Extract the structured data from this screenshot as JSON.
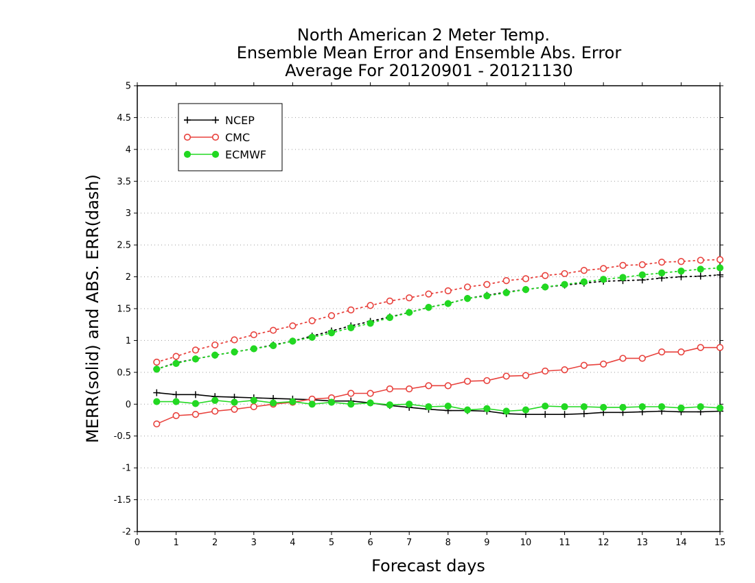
{
  "chart_data": {
    "type": "line",
    "title_lines": [
      "North American 2 Meter Temp.",
      "Ensemble Mean Error and Ensemble Abs. Error",
      "Average For 20120901 - 20121130"
    ],
    "xlabel": "Forecast days",
    "ylabel": "MERR(solid) and ABS. ERR(dash)",
    "xlim": [
      0,
      15
    ],
    "ylim": [
      -2,
      5
    ],
    "x_ticks": [
      0,
      1,
      2,
      3,
      4,
      5,
      6,
      7,
      8,
      9,
      10,
      11,
      12,
      13,
      14,
      15
    ],
    "y_ticks": [
      -2,
      -1.5,
      -1,
      -0.5,
      0,
      0.5,
      1,
      1.5,
      2,
      2.5,
      3,
      3.5,
      4,
      4.5,
      5
    ],
    "y_tick_labels": [
      "-2",
      "-1.5",
      "-1",
      "-0.5",
      "0",
      "0.5",
      "1",
      "1.5",
      "2",
      "2.5",
      "3",
      "3.5",
      "4",
      "4.5",
      "5"
    ],
    "grid": "horizontal dotted",
    "legend_position": "top-left",
    "x": [
      0.5,
      1,
      1.5,
      2,
      2.5,
      3,
      3.5,
      4,
      4.5,
      5,
      5.5,
      6,
      6.5,
      7,
      7.5,
      8,
      8.5,
      9,
      9.5,
      10,
      10.5,
      11,
      11.5,
      12,
      12.5,
      13,
      13.5,
      14,
      14.5,
      15
    ],
    "series": [
      {
        "name": "NCEP",
        "color": "#000000",
        "marker": "plus",
        "merr": [
          0.18,
          0.15,
          0.15,
          0.12,
          0.11,
          0.1,
          0.09,
          0.08,
          0.07,
          0.05,
          0.05,
          0.02,
          -0.02,
          -0.05,
          -0.08,
          -0.1,
          -0.1,
          -0.11,
          -0.15,
          -0.16,
          -0.16,
          -0.16,
          -0.15,
          -0.13,
          -0.13,
          -0.12,
          -0.11,
          -0.12,
          -0.12,
          -0.11
        ],
        "abs_err": [
          0.55,
          0.65,
          0.71,
          0.77,
          0.82,
          0.87,
          0.93,
          0.99,
          1.07,
          1.15,
          1.23,
          1.3,
          1.37,
          1.44,
          1.52,
          1.58,
          1.66,
          1.71,
          1.76,
          1.8,
          1.84,
          1.87,
          1.9,
          1.93,
          1.94,
          1.95,
          1.98,
          2.0,
          2.01,
          2.03
        ]
      },
      {
        "name": "CMC",
        "color": "#e8413c",
        "marker": "open-circle",
        "merr": [
          -0.31,
          -0.18,
          -0.16,
          -0.11,
          -0.08,
          -0.04,
          0.0,
          0.03,
          0.08,
          0.1,
          0.17,
          0.17,
          0.24,
          0.24,
          0.29,
          0.29,
          0.36,
          0.37,
          0.44,
          0.45,
          0.52,
          0.54,
          0.61,
          0.63,
          0.72,
          0.72,
          0.82,
          0.82,
          0.89,
          0.89
        ],
        "abs_err": [
          0.66,
          0.75,
          0.85,
          0.93,
          1.01,
          1.09,
          1.16,
          1.23,
          1.31,
          1.39,
          1.48,
          1.55,
          1.62,
          1.67,
          1.73,
          1.78,
          1.84,
          1.88,
          1.94,
          1.97,
          2.02,
          2.05,
          2.1,
          2.13,
          2.18,
          2.19,
          2.23,
          2.24,
          2.26,
          2.27
        ]
      },
      {
        "name": "ECMWF",
        "color": "#22d822",
        "marker": "filled-circle",
        "merr": [
          0.04,
          0.04,
          0.01,
          0.06,
          0.03,
          0.06,
          0.02,
          0.04,
          0.0,
          0.03,
          0.0,
          0.02,
          -0.01,
          0.0,
          -0.04,
          -0.03,
          -0.09,
          -0.07,
          -0.11,
          -0.09,
          -0.03,
          -0.04,
          -0.04,
          -0.05,
          -0.05,
          -0.04,
          -0.04,
          -0.06,
          -0.04,
          -0.06
        ],
        "abs_err": [
          0.55,
          0.64,
          0.71,
          0.77,
          0.82,
          0.87,
          0.92,
          0.99,
          1.05,
          1.12,
          1.2,
          1.27,
          1.36,
          1.44,
          1.52,
          1.58,
          1.66,
          1.7,
          1.75,
          1.8,
          1.84,
          1.88,
          1.92,
          1.96,
          1.99,
          2.03,
          2.06,
          2.09,
          2.12,
          2.14
        ]
      }
    ]
  }
}
